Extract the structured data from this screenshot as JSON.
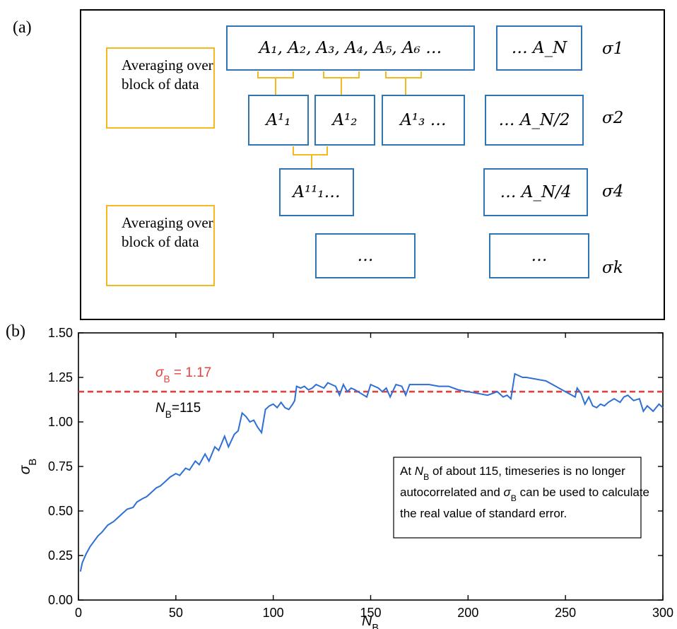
{
  "panel_a": {
    "label": "(a)",
    "note_top": "Averaging over block of data",
    "note_bottom": "Averaging over block of data",
    "row1_left": "A₁, A₂, A₃, A₄, A₅, A₆ …",
    "row1_right": "… A_N",
    "row2_b1": "A¹₁",
    "row2_b2": "A¹₂",
    "row2_b3": "A¹₃ …",
    "row2_right": "… A_N/2",
    "row3_left": "A¹¹₁…",
    "row3_right": "… A_N/4",
    "row4_left": "…",
    "row4_right": "…",
    "sigma_1": "σ1",
    "sigma_2": "σ2",
    "sigma_4": "σ4",
    "sigma_k": "σk"
  },
  "panel_b": {
    "label": "(b)"
  },
  "chart_data": {
    "type": "line",
    "xlabel": "N_B",
    "ylabel": "σ_B",
    "xlim": [
      0,
      300
    ],
    "ylim": [
      0,
      1.5
    ],
    "xticks": [
      0,
      50,
      100,
      150,
      200,
      250,
      300
    ],
    "yticks": [
      "0.00",
      "0.25",
      "0.50",
      "0.75",
      "1.00",
      "1.25",
      "1.50"
    ],
    "reference_line": {
      "value": 1.17,
      "label": "σ_B = 1.17",
      "color": "#e8413c",
      "style": "dashed"
    },
    "nb_annotation": "N_B=115",
    "annotation_box": [
      "At N_B of about 115, timeseries is no longer",
      "autocorrelated and σ_B can be used to calculate",
      "the real value of standard error."
    ],
    "line_color": "#2e6fd6",
    "series": [
      {
        "x": [
          1,
          2,
          4,
          6,
          8,
          10,
          12,
          15,
          18,
          20,
          22,
          25,
          28,
          30,
          33,
          35,
          38,
          40,
          42,
          45,
          47,
          50,
          52,
          55,
          57,
          60,
          62,
          65,
          67,
          70,
          72,
          75,
          77,
          80,
          82,
          84,
          86,
          88,
          90,
          92,
          94,
          96,
          98,
          100,
          102,
          104,
          106,
          108,
          110,
          111,
          112,
          114,
          116,
          118,
          120,
          122,
          124,
          126,
          128,
          130,
          132,
          134,
          136,
          138,
          140,
          142,
          145,
          148,
          150,
          152,
          154,
          156,
          158,
          160,
          163,
          166,
          168,
          170,
          175,
          180,
          185,
          190,
          195,
          200,
          205,
          210,
          215,
          218,
          220,
          222,
          224,
          226,
          228,
          230,
          235,
          240,
          245,
          250,
          255,
          256,
          258,
          260,
          262,
          264,
          266,
          268,
          270,
          272,
          275,
          278,
          280,
          282,
          285,
          288,
          290,
          292,
          295,
          298,
          300
        ],
        "y": [
          0.16,
          0.21,
          0.26,
          0.3,
          0.33,
          0.36,
          0.38,
          0.42,
          0.44,
          0.46,
          0.48,
          0.51,
          0.52,
          0.55,
          0.57,
          0.58,
          0.61,
          0.63,
          0.64,
          0.67,
          0.69,
          0.71,
          0.7,
          0.74,
          0.73,
          0.78,
          0.76,
          0.82,
          0.78,
          0.86,
          0.84,
          0.92,
          0.86,
          0.93,
          0.95,
          1.05,
          1.03,
          1.0,
          1.01,
          0.97,
          0.94,
          1.07,
          1.09,
          1.1,
          1.08,
          1.11,
          1.08,
          1.07,
          1.1,
          1.12,
          1.2,
          1.19,
          1.2,
          1.18,
          1.19,
          1.21,
          1.2,
          1.19,
          1.22,
          1.21,
          1.2,
          1.15,
          1.21,
          1.17,
          1.19,
          1.18,
          1.16,
          1.14,
          1.21,
          1.2,
          1.19,
          1.17,
          1.19,
          1.14,
          1.21,
          1.2,
          1.15,
          1.21,
          1.21,
          1.21,
          1.2,
          1.2,
          1.18,
          1.17,
          1.16,
          1.15,
          1.17,
          1.14,
          1.15,
          1.13,
          1.27,
          1.26,
          1.25,
          1.25,
          1.24,
          1.23,
          1.2,
          1.17,
          1.14,
          1.19,
          1.16,
          1.1,
          1.14,
          1.09,
          1.08,
          1.1,
          1.09,
          1.11,
          1.13,
          1.11,
          1.14,
          1.15,
          1.12,
          1.13,
          1.06,
          1.09,
          1.06,
          1.1,
          1.08
        ]
      }
    ]
  }
}
